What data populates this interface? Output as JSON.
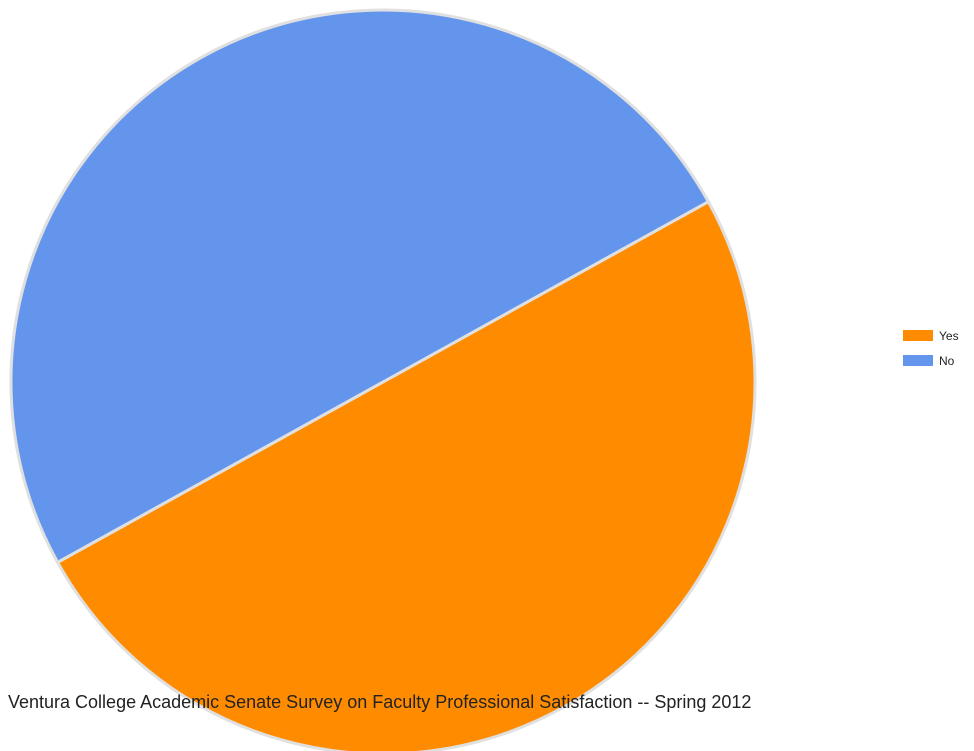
{
  "chart_data": {
    "type": "pie",
    "title": "Ventura College Academic Senate Survey on Faculty Professional Satisfaction -- Spring 2012",
    "categories": [
      "Yes",
      "No"
    ],
    "values": [
      50,
      50
    ],
    "colors": [
      "#ff8c00",
      "#6495ed"
    ],
    "start_angle_deg": 331,
    "legend_position": "right"
  },
  "colors": {
    "slice_border": "#e0e0e0",
    "background": "#ffffff"
  }
}
